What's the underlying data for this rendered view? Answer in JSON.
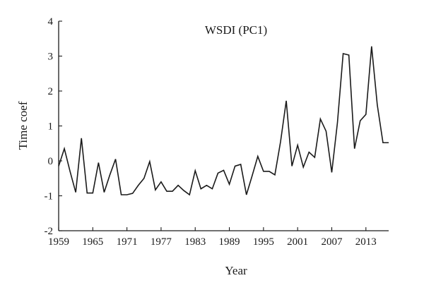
{
  "chart_data": {
    "type": "line",
    "title": "WSDI (PC1)",
    "xlabel": "Year",
    "ylabel": "Time coef",
    "xlim": [
      1959,
      2017
    ],
    "ylim": [
      -2,
      4
    ],
    "x_ticks": [
      1959,
      1965,
      1971,
      1977,
      1983,
      1989,
      1995,
      2001,
      2007,
      2013
    ],
    "x_tick_labels": [
      "1959",
      "1965",
      "1971",
      "1977",
      "1983",
      "1989",
      "1995",
      "2001",
      "2007",
      "2013"
    ],
    "y_ticks": [
      -2,
      -1,
      0,
      1,
      2,
      3,
      4
    ],
    "y_tick_labels": [
      "-2",
      "-1",
      "0",
      "1",
      "2",
      "3",
      "4"
    ],
    "grid": false,
    "x": [
      1959,
      1960,
      1961,
      1962,
      1963,
      1964,
      1965,
      1966,
      1967,
      1968,
      1969,
      1970,
      1971,
      1972,
      1973,
      1974,
      1975,
      1976,
      1977,
      1978,
      1979,
      1980,
      1981,
      1982,
      1983,
      1984,
      1985,
      1986,
      1987,
      1988,
      1989,
      1990,
      1991,
      1992,
      1993,
      1994,
      1995,
      1996,
      1997,
      1998,
      1999,
      2000,
      2001,
      2002,
      2003,
      2004,
      2005,
      2006,
      2007,
      2008,
      2009,
      2010,
      2011,
      2012,
      2013,
      2014,
      2015,
      2016,
      2017
    ],
    "series": [
      {
        "values": [
          -0.15,
          0.35,
          -0.3,
          -0.9,
          0.65,
          -0.92,
          -0.92,
          -0.05,
          -0.9,
          -0.4,
          0.05,
          -0.97,
          -0.97,
          -0.93,
          -0.7,
          -0.5,
          -0.02,
          -0.83,
          -0.6,
          -0.87,
          -0.87,
          -0.7,
          -0.85,
          -0.97,
          -0.28,
          -0.8,
          -0.7,
          -0.8,
          -0.35,
          -0.27,
          -0.67,
          -0.15,
          -0.1,
          -0.97,
          -0.43,
          0.13,
          -0.3,
          -0.3,
          -0.4,
          0.55,
          1.72,
          -0.15,
          0.45,
          -0.18,
          0.25,
          0.1,
          1.2,
          0.85,
          -0.33,
          1.1,
          3.07,
          3.03,
          0.35,
          1.15,
          1.33,
          3.28,
          1.6,
          0.52,
          0.52
        ]
      }
    ]
  }
}
